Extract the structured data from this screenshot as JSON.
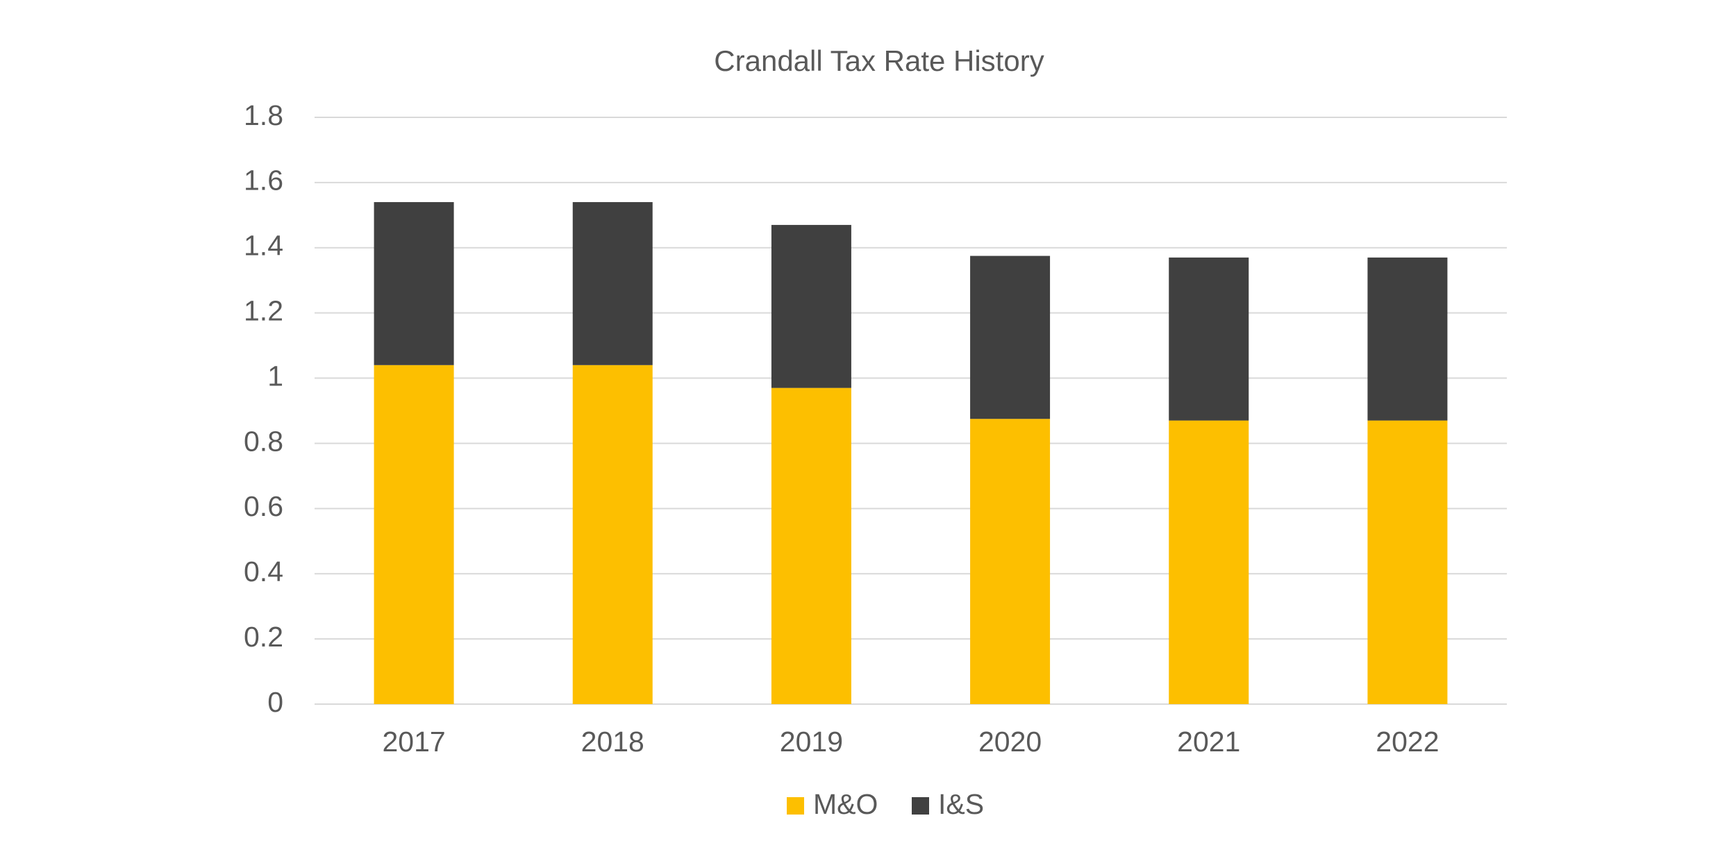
{
  "chart_data": {
    "type": "stacked_bar",
    "title": "Crandall Tax Rate History",
    "categories": [
      "2017",
      "2018",
      "2019",
      "2020",
      "2021",
      "2022"
    ],
    "series": [
      {
        "name": "M&O",
        "color": "#fdbf00",
        "values": [
          1.04,
          1.04,
          0.97,
          0.875,
          0.87,
          0.87
        ]
      },
      {
        "name": "I&S",
        "color": "#404040",
        "values": [
          0.5,
          0.5,
          0.5,
          0.5,
          0.5,
          0.5
        ]
      }
    ],
    "ylim": [
      0,
      1.8
    ],
    "yticks": [
      0,
      0.2,
      0.4,
      0.6,
      0.8,
      1,
      1.2,
      1.4,
      1.6,
      1.8
    ],
    "grid": true,
    "legend": "bottom"
  }
}
